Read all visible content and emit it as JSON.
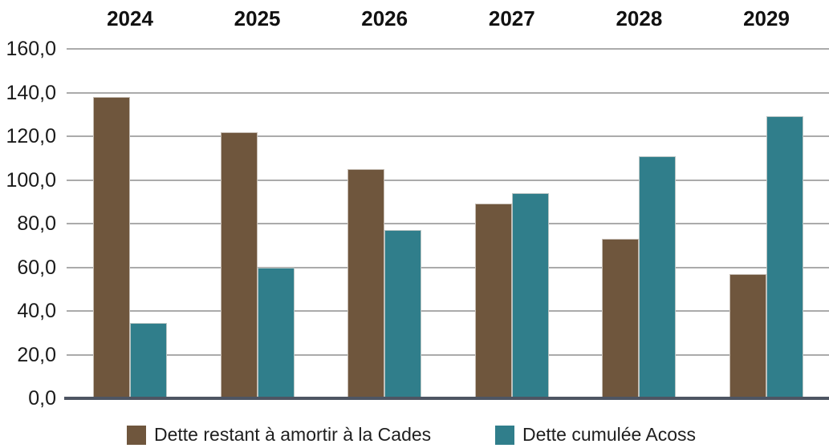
{
  "chart_data": {
    "type": "bar",
    "title": "",
    "categories": [
      "2024",
      "2025",
      "2026",
      "2027",
      "2028",
      "2029"
    ],
    "series": [
      {
        "name": "Dette restant à amortir à la Cades",
        "color": "#6F563D",
        "values": [
          138.0,
          122.0,
          105.0,
          89.0,
          73.0,
          57.0
        ]
      },
      {
        "name": "Dette cumulée Acoss",
        "color": "#307E8B",
        "values": [
          34.5,
          60.0,
          77.0,
          94.0,
          111.0,
          129.0
        ]
      }
    ],
    "xlabel": "",
    "ylabel": "",
    "ylim": [
      0,
      160
    ],
    "ytick_step": 20,
    "ytick_labels": [
      "0,0",
      "20,0",
      "40,0",
      "60,0",
      "80,0",
      "100,0",
      "120,0",
      "140,0",
      "160,0"
    ],
    "grid": true,
    "legend_position": "bottom",
    "colors": {
      "gridline": "#ababab",
      "baseline": "#4e5563",
      "text": "#1a1a1a"
    }
  }
}
